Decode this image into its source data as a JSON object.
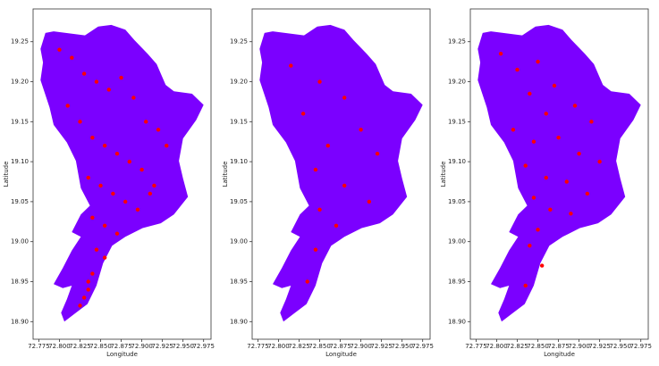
{
  "chart_data": [
    {
      "type": "scatter",
      "xlabel": "Longitude",
      "ylabel": "Latitude",
      "xlim": [
        72.768,
        72.984
      ],
      "ylim": [
        18.878,
        19.291
      ],
      "xticks": [
        72.775,
        {
          "value": 72.8,
          "label": "72.800"
        },
        72.825,
        {
          "value": 72.85,
          "label": "72.850"
        },
        72.875,
        {
          "value": 72.9,
          "label": "72.900"
        },
        72.925,
        {
          "value": 72.95,
          "label": "72.950"
        },
        72.975
      ],
      "yticks": [
        {
          "value": 18.9,
          "label": "18.90"
        },
        18.95,
        {
          "value": 19.0,
          "label": "19.00"
        },
        19.05,
        {
          "value": 19.1,
          "label": "19.10"
        },
        19.15,
        {
          "value": 19.2,
          "label": "19.20"
        },
        19.25
      ],
      "region": {
        "color": "#7b00ff",
        "x": [
          72.783,
          72.793,
          72.831,
          72.847,
          72.863,
          72.88,
          72.891,
          72.907,
          72.918,
          72.929,
          72.939,
          72.961,
          72.975,
          72.966,
          72.95,
          72.945,
          72.95,
          72.956,
          72.939,
          72.923,
          72.901,
          72.88,
          72.864,
          72.853,
          72.845,
          72.834,
          72.82,
          72.806,
          72.802,
          72.809,
          72.815,
          72.804,
          72.793,
          72.804,
          72.815,
          72.826,
          72.815,
          72.826,
          72.837,
          72.826,
          72.82,
          72.809,
          72.793,
          72.788,
          72.777,
          72.78,
          72.777
        ],
        "y": [
          19.261,
          19.263,
          19.258,
          19.269,
          19.271,
          19.265,
          19.252,
          19.235,
          19.222,
          19.196,
          19.188,
          19.185,
          19.171,
          19.152,
          19.129,
          19.101,
          19.079,
          19.056,
          19.034,
          19.023,
          19.017,
          19.006,
          18.995,
          18.973,
          18.945,
          18.922,
          18.911,
          18.9,
          18.911,
          18.928,
          18.945,
          18.942,
          18.947,
          18.967,
          18.989,
          19.006,
          19.012,
          19.034,
          19.045,
          19.067,
          19.101,
          19.124,
          19.146,
          19.168,
          19.202,
          19.224,
          19.241
        ]
      },
      "points": {
        "color": "#ff0000",
        "x": [
          72.8,
          72.815,
          72.83,
          72.845,
          72.86,
          72.875,
          72.89,
          72.905,
          72.92,
          72.81,
          72.825,
          72.84,
          72.855,
          72.87,
          72.885,
          72.9,
          72.915,
          72.93,
          72.835,
          72.85,
          72.865,
          72.88,
          72.895,
          72.91,
          72.84,
          72.855,
          72.87,
          72.845,
          72.855,
          72.84,
          72.835,
          72.835,
          72.83,
          72.825
        ],
        "y": [
          19.24,
          19.23,
          19.21,
          19.2,
          19.19,
          19.205,
          19.18,
          19.15,
          19.14,
          19.17,
          19.15,
          19.13,
          19.12,
          19.11,
          19.1,
          19.09,
          19.07,
          19.12,
          19.08,
          19.07,
          19.06,
          19.05,
          19.04,
          19.06,
          19.03,
          19.02,
          19.01,
          18.99,
          18.98,
          18.96,
          18.95,
          18.94,
          18.93,
          18.92
        ]
      }
    },
    {
      "type": "scatter",
      "xlabel": "Longitude",
      "ylabel": "Latitude",
      "xlim": [
        72.768,
        72.984
      ],
      "ylim": [
        18.878,
        19.291
      ],
      "xticks": [
        72.775,
        {
          "value": 72.8,
          "label": "72.800"
        },
        72.825,
        {
          "value": 72.85,
          "label": "72.850"
        },
        72.875,
        {
          "value": 72.9,
          "label": "72.900"
        },
        72.925,
        {
          "value": 72.95,
          "label": "72.950"
        },
        72.975
      ],
      "yticks": [
        {
          "value": 18.9,
          "label": "18.90"
        },
        18.95,
        {
          "value": 19.0,
          "label": "19.00"
        },
        19.05,
        {
          "value": 19.1,
          "label": "19.10"
        },
        19.15,
        {
          "value": 19.2,
          "label": "19.20"
        },
        19.25
      ],
      "region": {
        "color": "#7b00ff",
        "x": [
          72.783,
          72.793,
          72.831,
          72.847,
          72.863,
          72.88,
          72.891,
          72.907,
          72.918,
          72.929,
          72.939,
          72.961,
          72.975,
          72.966,
          72.95,
          72.945,
          72.95,
          72.956,
          72.939,
          72.923,
          72.901,
          72.88,
          72.864,
          72.853,
          72.845,
          72.834,
          72.82,
          72.806,
          72.802,
          72.809,
          72.815,
          72.804,
          72.793,
          72.804,
          72.815,
          72.826,
          72.815,
          72.826,
          72.837,
          72.826,
          72.82,
          72.809,
          72.793,
          72.788,
          72.777,
          72.78,
          72.777
        ],
        "y": [
          19.261,
          19.263,
          19.258,
          19.269,
          19.271,
          19.265,
          19.252,
          19.235,
          19.222,
          19.196,
          19.188,
          19.185,
          19.171,
          19.152,
          19.129,
          19.101,
          19.079,
          19.056,
          19.034,
          19.023,
          19.017,
          19.006,
          18.995,
          18.973,
          18.945,
          18.922,
          18.911,
          18.9,
          18.911,
          18.928,
          18.945,
          18.942,
          18.947,
          18.967,
          18.989,
          19.006,
          19.012,
          19.034,
          19.045,
          19.067,
          19.101,
          19.124,
          19.146,
          19.168,
          19.202,
          19.224,
          19.241
        ]
      },
      "points": {
        "color": "#ff0000",
        "x": [
          72.815,
          72.85,
          72.88,
          72.83,
          72.9,
          72.86,
          72.92,
          72.845,
          72.88,
          72.91,
          72.85,
          72.87,
          72.845,
          72.835
        ],
        "y": [
          19.22,
          19.2,
          19.18,
          19.16,
          19.14,
          19.12,
          19.11,
          19.09,
          19.07,
          19.05,
          19.04,
          19.02,
          18.99,
          18.95
        ]
      }
    },
    {
      "type": "scatter",
      "xlabel": "Longitude",
      "ylabel": "Latitude",
      "xlim": [
        72.768,
        72.984
      ],
      "ylim": [
        18.878,
        19.291
      ],
      "xticks": [
        72.775,
        {
          "value": 72.8,
          "label": "72.800"
        },
        72.825,
        {
          "value": 72.85,
          "label": "72.850"
        },
        72.875,
        {
          "value": 72.9,
          "label": "72.900"
        },
        72.925,
        {
          "value": 72.95,
          "label": "72.950"
        },
        72.975
      ],
      "yticks": [
        {
          "value": 18.9,
          "label": "18.90"
        },
        18.95,
        {
          "value": 19.0,
          "label": "19.00"
        },
        19.05,
        {
          "value": 19.1,
          "label": "19.10"
        },
        19.15,
        {
          "value": 19.2,
          "label": "19.20"
        },
        19.25
      ],
      "region": {
        "color": "#7b00ff",
        "x": [
          72.783,
          72.793,
          72.831,
          72.847,
          72.863,
          72.88,
          72.891,
          72.907,
          72.918,
          72.929,
          72.939,
          72.961,
          72.975,
          72.966,
          72.95,
          72.945,
          72.95,
          72.956,
          72.939,
          72.923,
          72.901,
          72.88,
          72.864,
          72.853,
          72.845,
          72.834,
          72.82,
          72.806,
          72.802,
          72.809,
          72.815,
          72.804,
          72.793,
          72.804,
          72.815,
          72.826,
          72.815,
          72.826,
          72.837,
          72.826,
          72.82,
          72.809,
          72.793,
          72.788,
          72.777,
          72.78,
          72.777
        ],
        "y": [
          19.261,
          19.263,
          19.258,
          19.269,
          19.271,
          19.265,
          19.252,
          19.235,
          19.222,
          19.196,
          19.188,
          19.185,
          19.171,
          19.152,
          19.129,
          19.101,
          19.079,
          19.056,
          19.034,
          19.023,
          19.017,
          19.006,
          18.995,
          18.973,
          18.945,
          18.922,
          18.911,
          18.9,
          18.911,
          18.928,
          18.945,
          18.942,
          18.947,
          18.967,
          18.989,
          19.006,
          19.012,
          19.034,
          19.045,
          19.067,
          19.101,
          19.124,
          19.146,
          19.168,
          19.202,
          19.224,
          19.241
        ]
      },
      "points": {
        "color": "#ff0000",
        "x": [
          72.805,
          72.825,
          72.85,
          72.87,
          72.84,
          72.86,
          72.895,
          72.915,
          72.82,
          72.845,
          72.875,
          72.9,
          72.925,
          72.835,
          72.86,
          72.885,
          72.91,
          72.845,
          72.865,
          72.89,
          72.85,
          72.84,
          72.855,
          72.835
        ],
        "y": [
          19.235,
          19.215,
          19.225,
          19.195,
          19.185,
          19.16,
          19.17,
          19.15,
          19.14,
          19.125,
          19.13,
          19.11,
          19.1,
          19.095,
          19.08,
          19.075,
          19.06,
          19.055,
          19.04,
          19.035,
          19.015,
          18.995,
          18.97,
          18.945
        ]
      }
    }
  ]
}
